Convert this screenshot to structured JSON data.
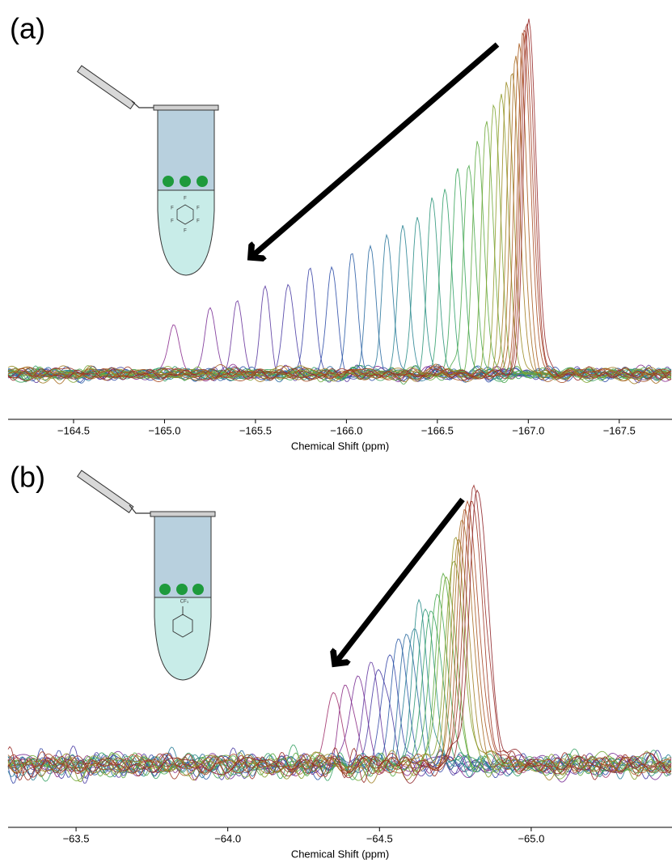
{
  "chart_data": [
    {
      "type": "spectra",
      "panel_label": "(a)",
      "x_label": "Chemical Shift (ppm)",
      "substituent": "F",
      "xlim": [
        -164.14,
        -167.79
      ],
      "xticks": [
        {
          "value": -164.5,
          "label": "−164.5"
        },
        {
          "value": -165.0,
          "label": "−165.0"
        },
        {
          "value": -165.5,
          "label": "−165.5"
        },
        {
          "value": -166.0,
          "label": "−166.0"
        },
        {
          "value": -166.5,
          "label": "−166.5"
        },
        {
          "value": -167.0,
          "label": "−167.0"
        },
        {
          "value": -167.5,
          "label": "−167.5"
        }
      ],
      "x": [
        -165.05,
        -165.25,
        -165.4,
        -165.55,
        -165.68,
        -165.8,
        -165.92,
        -166.03,
        -166.13,
        -166.22,
        -166.31,
        -166.39,
        -166.47,
        -166.54,
        -166.61,
        -166.67,
        -166.72,
        -166.77,
        -166.81,
        -166.85,
        -166.88,
        -166.91,
        -166.93,
        -166.95,
        -166.97,
        -166.98,
        -166.99,
        -167.0
      ],
      "values": [
        0.14,
        0.2,
        0.21,
        0.24,
        0.26,
        0.28,
        0.3,
        0.33,
        0.36,
        0.39,
        0.42,
        0.45,
        0.49,
        0.53,
        0.57,
        0.61,
        0.65,
        0.7,
        0.74,
        0.78,
        0.82,
        0.86,
        0.89,
        0.92,
        0.95,
        0.97,
        0.99,
        1.0
      ],
      "colors": [
        "#8b2c8f",
        "#7a2f96",
        "#6a349c",
        "#5a38a0",
        "#4a3ca4",
        "#3a42a6",
        "#2d4ea8",
        "#2a5ca6",
        "#2a6aa2",
        "#2a789c",
        "#2a8494",
        "#2a8e88",
        "#2d967a",
        "#31a06a",
        "#3aa45a",
        "#4aa84c",
        "#5caa40",
        "#6ea836",
        "#80a42e",
        "#8f9a28",
        "#9a8c24",
        "#a27c22",
        "#a86c20",
        "#aa5c20",
        "#a84c22",
        "#a43e24",
        "#9e3226",
        "#962828"
      ]
    },
    {
      "type": "spectra",
      "panel_label": "(b)",
      "x_label": "Chemical Shift (ppm)",
      "substituent": "CF₃",
      "xlim": [
        -63.276,
        -65.464
      ],
      "xticks": [
        {
          "value": -63.5,
          "label": "−63.5"
        },
        {
          "value": -64.0,
          "label": "−64.0"
        },
        {
          "value": -64.5,
          "label": "−64.5"
        },
        {
          "value": -65.0,
          "label": "−65.0"
        }
      ],
      "x": [
        -64.35,
        -64.39,
        -64.43,
        -64.47,
        -64.5,
        -64.53,
        -64.56,
        -64.59,
        -64.61,
        -64.63,
        -64.65,
        -64.67,
        -64.69,
        -64.71,
        -64.72,
        -64.74,
        -64.75,
        -64.76,
        -64.77,
        -64.78,
        -64.79,
        -64.8,
        -64.81,
        -64.82
      ],
      "values": [
        0.25,
        0.28,
        0.31,
        0.34,
        0.37,
        0.4,
        0.43,
        0.46,
        0.5,
        0.53,
        0.56,
        0.6,
        0.63,
        0.67,
        0.7,
        0.74,
        0.77,
        0.81,
        0.85,
        0.88,
        0.92,
        0.95,
        0.98,
        1.0
      ],
      "colors": [
        "#a0306a",
        "#8c2e86",
        "#7a3096",
        "#6236a0",
        "#4a3ca4",
        "#3648a8",
        "#2a5aa6",
        "#2a6ca0",
        "#2a7e98",
        "#2a8c8a",
        "#2e9878",
        "#36a264",
        "#46a850",
        "#5aaa40",
        "#70a834",
        "#84a02c",
        "#949228",
        "#a08024",
        "#a86c22",
        "#aa5822",
        "#a64624",
        "#a03826",
        "#982c28",
        "#8e2428"
      ]
    }
  ]
}
